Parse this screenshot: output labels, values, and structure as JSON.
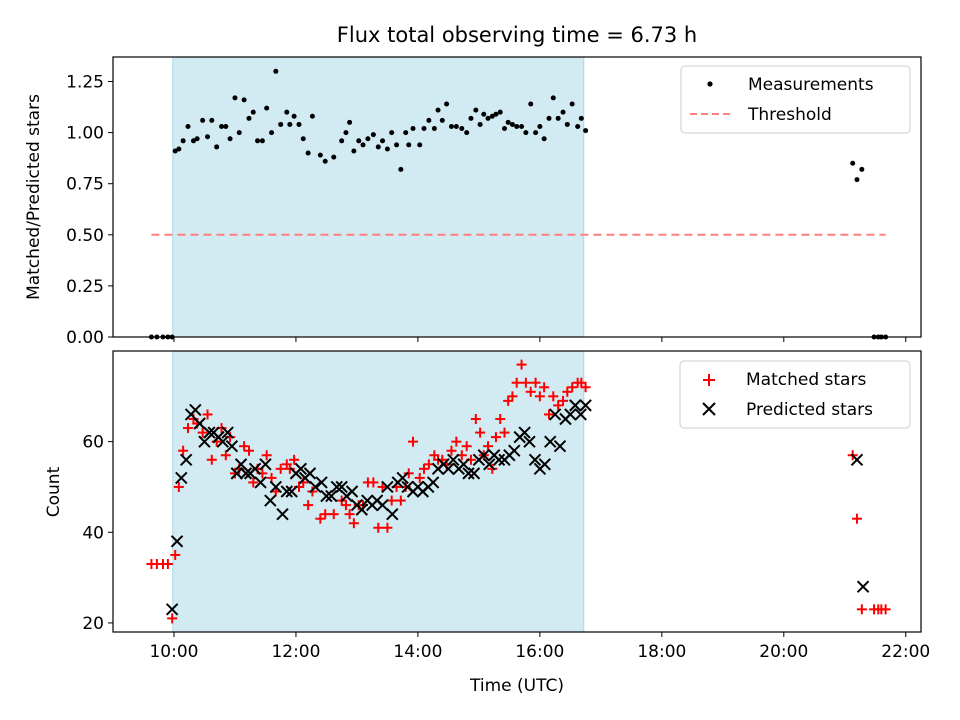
{
  "chart_data": {
    "type": "scatter",
    "title": "Flux total observing time = 6.73 h",
    "xlabel": "Time (UTC)",
    "x_ticks": [
      "10:00",
      "12:00",
      "14:00",
      "16:00",
      "18:00",
      "20:00",
      "22:00"
    ],
    "xlim_hours": [
      9.0,
      22.25
    ],
    "shaded_interval_hours": [
      9.98,
      16.72
    ],
    "shade_color": "#add8e6",
    "panels": [
      {
        "ylabel": "Matched/Predicted stars",
        "ylim": [
          0,
          1.37
        ],
        "y_ticks": [
          "0.00",
          "0.25",
          "0.50",
          "0.75",
          "1.00",
          "1.25"
        ],
        "y_tick_values": [
          0,
          0.25,
          0.5,
          0.75,
          1.0,
          1.25
        ],
        "legend_position": "top-right",
        "series": [
          {
            "name": "Measurements",
            "marker": "dot",
            "color": "#000000",
            "x": [
              9.63,
              9.72,
              9.82,
              9.9,
              9.97,
              10.02,
              10.08,
              10.15,
              10.23,
              10.32,
              10.38,
              10.47,
              10.55,
              10.62,
              10.7,
              10.78,
              10.85,
              10.92,
              11.0,
              11.07,
              11.15,
              11.23,
              11.3,
              11.37,
              11.45,
              11.52,
              11.6,
              11.67,
              11.75,
              11.85,
              11.9,
              11.97,
              12.05,
              12.12,
              12.2,
              12.27,
              12.4,
              12.48,
              12.62,
              12.75,
              12.82,
              12.88,
              12.95,
              13.03,
              13.1,
              13.18,
              13.27,
              13.35,
              13.42,
              13.5,
              13.57,
              13.65,
              13.72,
              13.8,
              13.85,
              13.92,
              14.03,
              14.1,
              14.18,
              14.27,
              14.33,
              14.4,
              14.47,
              14.55,
              14.63,
              14.72,
              14.8,
              14.87,
              14.95,
              15.02,
              15.08,
              15.15,
              15.22,
              15.28,
              15.35,
              15.42,
              15.48,
              15.55,
              15.62,
              15.7,
              15.77,
              15.85,
              15.93,
              16.0,
              16.07,
              16.15,
              16.22,
              16.3,
              16.38,
              16.45,
              16.53,
              16.62,
              16.68,
              16.75,
              21.13,
              21.2,
              21.28,
              21.48,
              21.55,
              21.6,
              21.67
            ],
            "y": [
              0.0,
              0.0,
              0.0,
              0.0,
              0.0,
              0.91,
              0.92,
              0.96,
              1.03,
              0.96,
              0.97,
              1.06,
              0.98,
              1.06,
              0.93,
              1.03,
              1.03,
              0.97,
              1.17,
              1.0,
              1.16,
              1.07,
              1.1,
              0.96,
              0.96,
              1.12,
              1.0,
              1.3,
              1.04,
              1.1,
              1.04,
              1.08,
              1.04,
              0.97,
              0.9,
              1.08,
              0.89,
              0.86,
              0.88,
              0.96,
              1.0,
              1.05,
              0.91,
              0.96,
              0.94,
              0.97,
              0.99,
              0.93,
              0.96,
              0.92,
              1.0,
              0.94,
              0.82,
              1.0,
              0.94,
              1.02,
              0.94,
              1.02,
              1.06,
              1.02,
              1.11,
              1.06,
              1.14,
              1.03,
              1.03,
              1.02,
              1.0,
              1.07,
              1.11,
              1.04,
              1.09,
              1.07,
              1.08,
              1.09,
              1.1,
              1.02,
              1.05,
              1.04,
              1.03,
              1.03,
              1.0,
              1.14,
              1.0,
              1.03,
              0.97,
              1.07,
              1.17,
              1.07,
              1.1,
              1.04,
              1.14,
              1.03,
              1.07,
              1.01,
              0.85,
              0.77,
              0.82,
              0.0,
              0.0,
              0.0,
              0.0
            ]
          },
          {
            "name": "Threshold",
            "marker": "dashed-line",
            "color": "#ff7f7f",
            "x": [
              9.63,
              21.67
            ],
            "y": [
              0.5,
              0.5
            ]
          }
        ]
      },
      {
        "ylabel": "Count",
        "ylim": [
          18,
          80
        ],
        "y_ticks": [
          "20",
          "40",
          "60"
        ],
        "y_tick_values": [
          20,
          40,
          60
        ],
        "legend_position": "top-right",
        "series": [
          {
            "name": "Matched stars",
            "marker": "plus",
            "color": "#ff0000",
            "x": [
              9.63,
              9.72,
              9.82,
              9.9,
              9.97,
              10.02,
              10.08,
              10.15,
              10.23,
              10.32,
              10.38,
              10.47,
              10.55,
              10.62,
              10.7,
              10.78,
              10.85,
              10.92,
              11.0,
              11.07,
              11.15,
              11.23,
              11.3,
              11.37,
              11.45,
              11.52,
              11.6,
              11.67,
              11.75,
              11.85,
              11.9,
              11.97,
              12.05,
              12.12,
              12.2,
              12.27,
              12.4,
              12.48,
              12.62,
              12.75,
              12.82,
              12.88,
              12.95,
              13.03,
              13.1,
              13.18,
              13.27,
              13.35,
              13.42,
              13.5,
              13.57,
              13.65,
              13.72,
              13.8,
              13.85,
              13.92,
              14.03,
              14.1,
              14.18,
              14.27,
              14.33,
              14.4,
              14.47,
              14.55,
              14.63,
              14.72,
              14.8,
              14.87,
              14.95,
              15.02,
              15.08,
              15.15,
              15.22,
              15.28,
              15.35,
              15.42,
              15.48,
              15.55,
              15.62,
              15.7,
              15.77,
              15.85,
              15.93,
              16.0,
              16.07,
              16.15,
              16.22,
              16.3,
              16.38,
              16.45,
              16.53,
              16.62,
              16.68,
              16.75,
              21.13,
              21.2,
              21.28,
              21.48,
              21.55,
              21.6,
              21.67
            ],
            "y": [
              33,
              33,
              33,
              33,
              21,
              35,
              50,
              58,
              63,
              65,
              64,
              62,
              66,
              56,
              60,
              63,
              57,
              61,
              53,
              54,
              59,
              58,
              51,
              54,
              53,
              57,
              52,
              49,
              54,
              55,
              54,
              56,
              50,
              51,
              46,
              49,
              43,
              44,
              44,
              47,
              46,
              44,
              42,
              46,
              46,
              51,
              51,
              41,
              50,
              41,
              47,
              50,
              47,
              50,
              53,
              60,
              52,
              54,
              55,
              57,
              56,
              56,
              55,
              58,
              60,
              57,
              59,
              56,
              65,
              62,
              57,
              59,
              54,
              61,
              65,
              62,
              69,
              70,
              73,
              77,
              73,
              71,
              73,
              70,
              72,
              66,
              70,
              68,
              69,
              71,
              72,
              73,
              73,
              72,
              57,
              43,
              23,
              23,
              23,
              23,
              23
            ]
          },
          {
            "name": "Predicted stars",
            "marker": "x",
            "color": "#000000",
            "x": [
              9.97,
              10.05,
              10.12,
              10.2,
              10.28,
              10.35,
              10.42,
              10.5,
              10.58,
              10.65,
              10.73,
              10.8,
              10.88,
              10.95,
              11.03,
              11.1,
              11.18,
              11.25,
              11.33,
              11.42,
              11.5,
              11.58,
              11.67,
              11.78,
              11.85,
              11.93,
              12.0,
              12.08,
              12.15,
              12.23,
              12.32,
              12.42,
              12.5,
              12.58,
              12.67,
              12.75,
              12.83,
              12.92,
              13.0,
              13.08,
              13.17,
              13.25,
              13.33,
              13.42,
              13.5,
              13.58,
              13.67,
              13.75,
              13.83,
              13.92,
              14.0,
              14.08,
              14.17,
              14.25,
              14.33,
              14.42,
              14.5,
              14.58,
              14.67,
              14.75,
              14.83,
              14.92,
              15.0,
              15.08,
              15.17,
              15.25,
              15.33,
              15.42,
              15.5,
              15.58,
              15.67,
              15.75,
              15.83,
              15.92,
              16.0,
              16.08,
              16.17,
              16.25,
              16.33,
              16.42,
              16.5,
              16.58,
              16.67,
              16.75,
              21.2,
              21.3
            ],
            "y": [
              23,
              38,
              52,
              56,
              66,
              67,
              64,
              60,
              62,
              62,
              61,
              60,
              62,
              59,
              53,
              55,
              53,
              53,
              54,
              51,
              55,
              47,
              50,
              44,
              49,
              49,
              53,
              54,
              52,
              53,
              50,
              51,
              48,
              48,
              50,
              50,
              48,
              49,
              46,
              45,
              47,
              46,
              47,
              46,
              50,
              44,
              51,
              52,
              50,
              49,
              50,
              49,
              50,
              51,
              54,
              55,
              54,
              56,
              54,
              55,
              53,
              53,
              56,
              57,
              55,
              57,
              56,
              56,
              57,
              58,
              61,
              62,
              60,
              56,
              54,
              55,
              60,
              66,
              59,
              65,
              66,
              68,
              66,
              68,
              56,
              28
            ]
          }
        ]
      }
    ]
  }
}
